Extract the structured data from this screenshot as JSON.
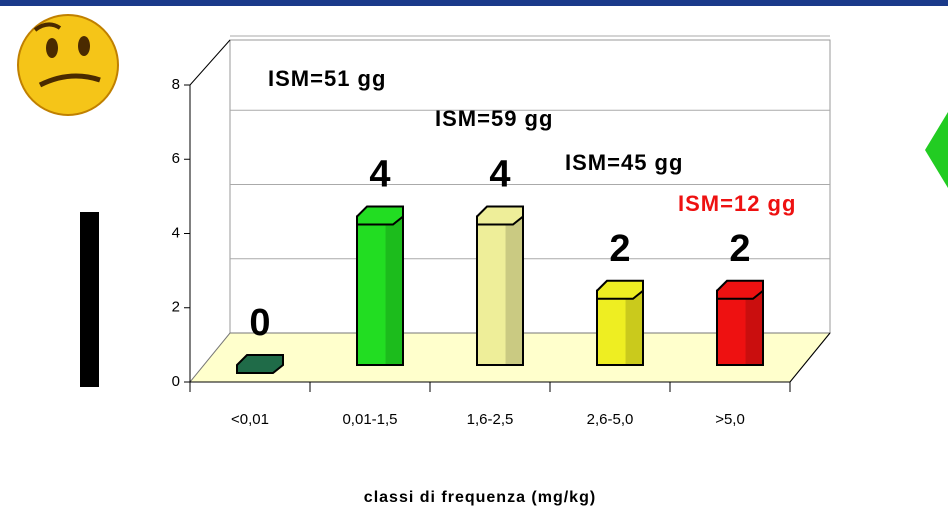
{
  "chart_data": {
    "type": "bar3d",
    "categories": [
      "<0,01",
      "0,01-1,5",
      "1,6-2,5",
      "2,6-5,0",
      ">5,0"
    ],
    "values": [
      0,
      4,
      4,
      2,
      2
    ],
    "colors": [
      "#1f6b48",
      "#22dd22",
      "#eeee99",
      "#eeee22",
      "#ee1111"
    ],
    "ylim": [
      0,
      8
    ],
    "yticks": [
      0,
      2,
      4,
      6,
      8
    ],
    "grid": true,
    "x_label": "classi di frequenza (mg/kg)",
    "annotations": [
      {
        "text": "ISM=51 gg",
        "color": "#000000"
      },
      {
        "text": "ISM=59 gg",
        "color": "#000000"
      },
      {
        "text": "ISM=45 gg",
        "color": "#000000"
      },
      {
        "text": "ISM=12 gg",
        "color": "#ee1111"
      }
    ]
  }
}
